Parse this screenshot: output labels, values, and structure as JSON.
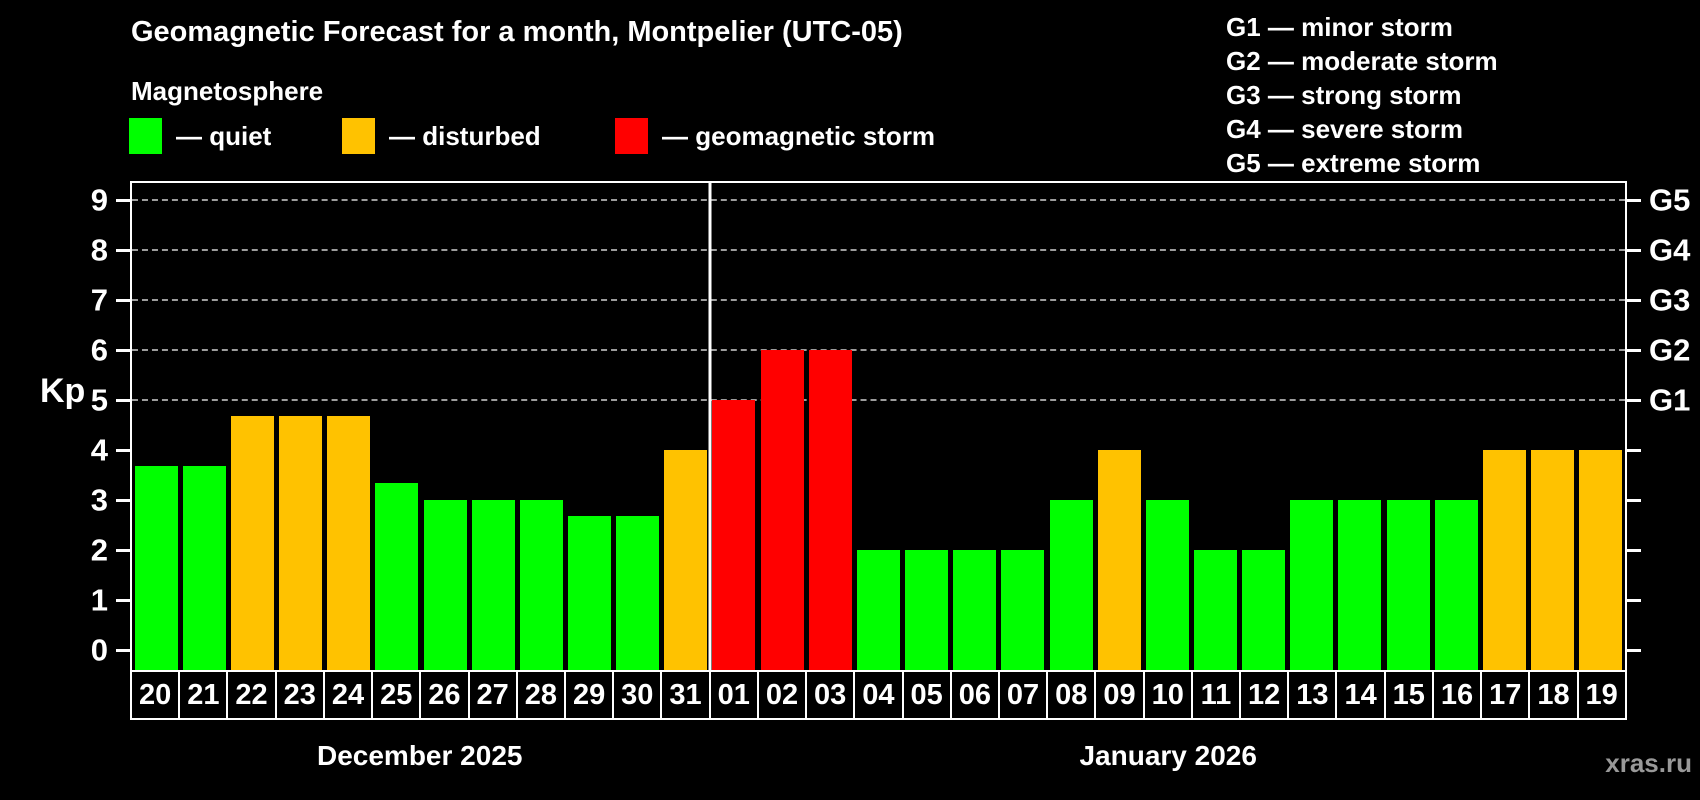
{
  "header": {
    "title": "Geomagnetic Forecast for a month, Montpelier (UTC-05)"
  },
  "legend": {
    "title": "Magnetosphere",
    "items": [
      {
        "label": "— quiet",
        "status": "quiet",
        "color": "#00ff00",
        "x": 129
      },
      {
        "label": "— disturbed",
        "status": "disturbed",
        "color": "#ffc200",
        "x": 342
      },
      {
        "label": "— geomagnetic storm",
        "status": "storm",
        "color": "#ff0000",
        "x": 615
      }
    ]
  },
  "storm_scale_legend": {
    "items": [
      "G1 — minor storm",
      "G2 — moderate storm",
      "G3 — strong storm",
      "G4 — severe storm",
      "G5 — extreme storm"
    ]
  },
  "chart_data": {
    "type": "bar",
    "title": "Geomagnetic Forecast for a month, Montpelier (UTC-05)",
    "ylabel": "Kp",
    "ylim": [
      0,
      9
    ],
    "yticks": [
      0,
      1,
      2,
      3,
      4,
      5,
      6,
      7,
      8,
      9
    ],
    "gridlines_at": [
      5,
      6,
      7,
      8,
      9
    ],
    "grid": "dashed horizontal at storm levels only",
    "right_axis_labels": [
      {
        "level": 5,
        "label": "G1"
      },
      {
        "level": 6,
        "label": "G2"
      },
      {
        "level": 7,
        "label": "G3"
      },
      {
        "level": 8,
        "label": "G4"
      },
      {
        "level": 9,
        "label": "G5"
      }
    ],
    "status_colors": {
      "quiet": "#00ff00",
      "disturbed": "#ffc200",
      "storm": "#ff0000"
    },
    "months": [
      {
        "label": "December 2025",
        "days": 12
      },
      {
        "label": "January 2026",
        "days": 19
      }
    ],
    "days": [
      {
        "day": "20",
        "kp": 3.67,
        "status": "quiet"
      },
      {
        "day": "21",
        "kp": 3.67,
        "status": "quiet"
      },
      {
        "day": "22",
        "kp": 4.67,
        "status": "disturbed"
      },
      {
        "day": "23",
        "kp": 4.67,
        "status": "disturbed"
      },
      {
        "day": "24",
        "kp": 4.67,
        "status": "disturbed"
      },
      {
        "day": "25",
        "kp": 3.33,
        "status": "quiet"
      },
      {
        "day": "26",
        "kp": 3.0,
        "status": "quiet"
      },
      {
        "day": "27",
        "kp": 3.0,
        "status": "quiet"
      },
      {
        "day": "28",
        "kp": 3.0,
        "status": "quiet"
      },
      {
        "day": "29",
        "kp": 2.67,
        "status": "quiet"
      },
      {
        "day": "30",
        "kp": 2.67,
        "status": "quiet"
      },
      {
        "day": "31",
        "kp": 4.0,
        "status": "disturbed"
      },
      {
        "day": "01",
        "kp": 5.0,
        "status": "storm"
      },
      {
        "day": "02",
        "kp": 6.0,
        "status": "storm"
      },
      {
        "day": "03",
        "kp": 6.0,
        "status": "storm"
      },
      {
        "day": "04",
        "kp": 2.0,
        "status": "quiet"
      },
      {
        "day": "05",
        "kp": 2.0,
        "status": "quiet"
      },
      {
        "day": "06",
        "kp": 2.0,
        "status": "quiet"
      },
      {
        "day": "07",
        "kp": 2.0,
        "status": "quiet"
      },
      {
        "day": "08",
        "kp": 3.0,
        "status": "quiet"
      },
      {
        "day": "09",
        "kp": 4.0,
        "status": "disturbed"
      },
      {
        "day": "10",
        "kp": 3.0,
        "status": "quiet"
      },
      {
        "day": "11",
        "kp": 2.0,
        "status": "quiet"
      },
      {
        "day": "12",
        "kp": 2.0,
        "status": "quiet"
      },
      {
        "day": "13",
        "kp": 3.0,
        "status": "quiet"
      },
      {
        "day": "14",
        "kp": 3.0,
        "status": "quiet"
      },
      {
        "day": "15",
        "kp": 3.0,
        "status": "quiet"
      },
      {
        "day": "16",
        "kp": 3.0,
        "status": "quiet"
      },
      {
        "day": "17",
        "kp": 4.0,
        "status": "disturbed"
      },
      {
        "day": "18",
        "kp": 4.0,
        "status": "disturbed"
      },
      {
        "day": "19",
        "kp": 4.0,
        "status": "disturbed"
      }
    ]
  },
  "footer": {
    "watermark": "xras.ru"
  }
}
